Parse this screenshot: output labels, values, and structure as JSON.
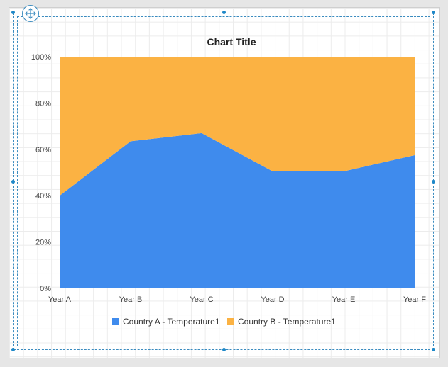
{
  "chart_data": {
    "type": "area",
    "stacked": "100%",
    "title": "Chart Title",
    "categories": [
      "Year A",
      "Year B",
      "Year C",
      "Year D",
      "Year E",
      "Year F"
    ],
    "ylim": [
      0,
      100
    ],
    "y_ticks": [
      "0%",
      "20%",
      "40%",
      "60%",
      "80%",
      "100%"
    ],
    "grid": false,
    "legend_position": "bottom",
    "series": [
      {
        "name": "Country A - Temperature1",
        "color": "#3f8bed",
        "values": [
          40,
          63.5,
          67,
          50.5,
          50.5,
          57.5
        ]
      },
      {
        "name": "Country B - Temperature1",
        "color": "#fbb243",
        "values": [
          60,
          36.5,
          33,
          49.5,
          49.5,
          42.5
        ]
      }
    ]
  },
  "design_surface": {
    "move_handle_icon": "move-arrows-icon",
    "selection_color": "#1e88c8"
  }
}
